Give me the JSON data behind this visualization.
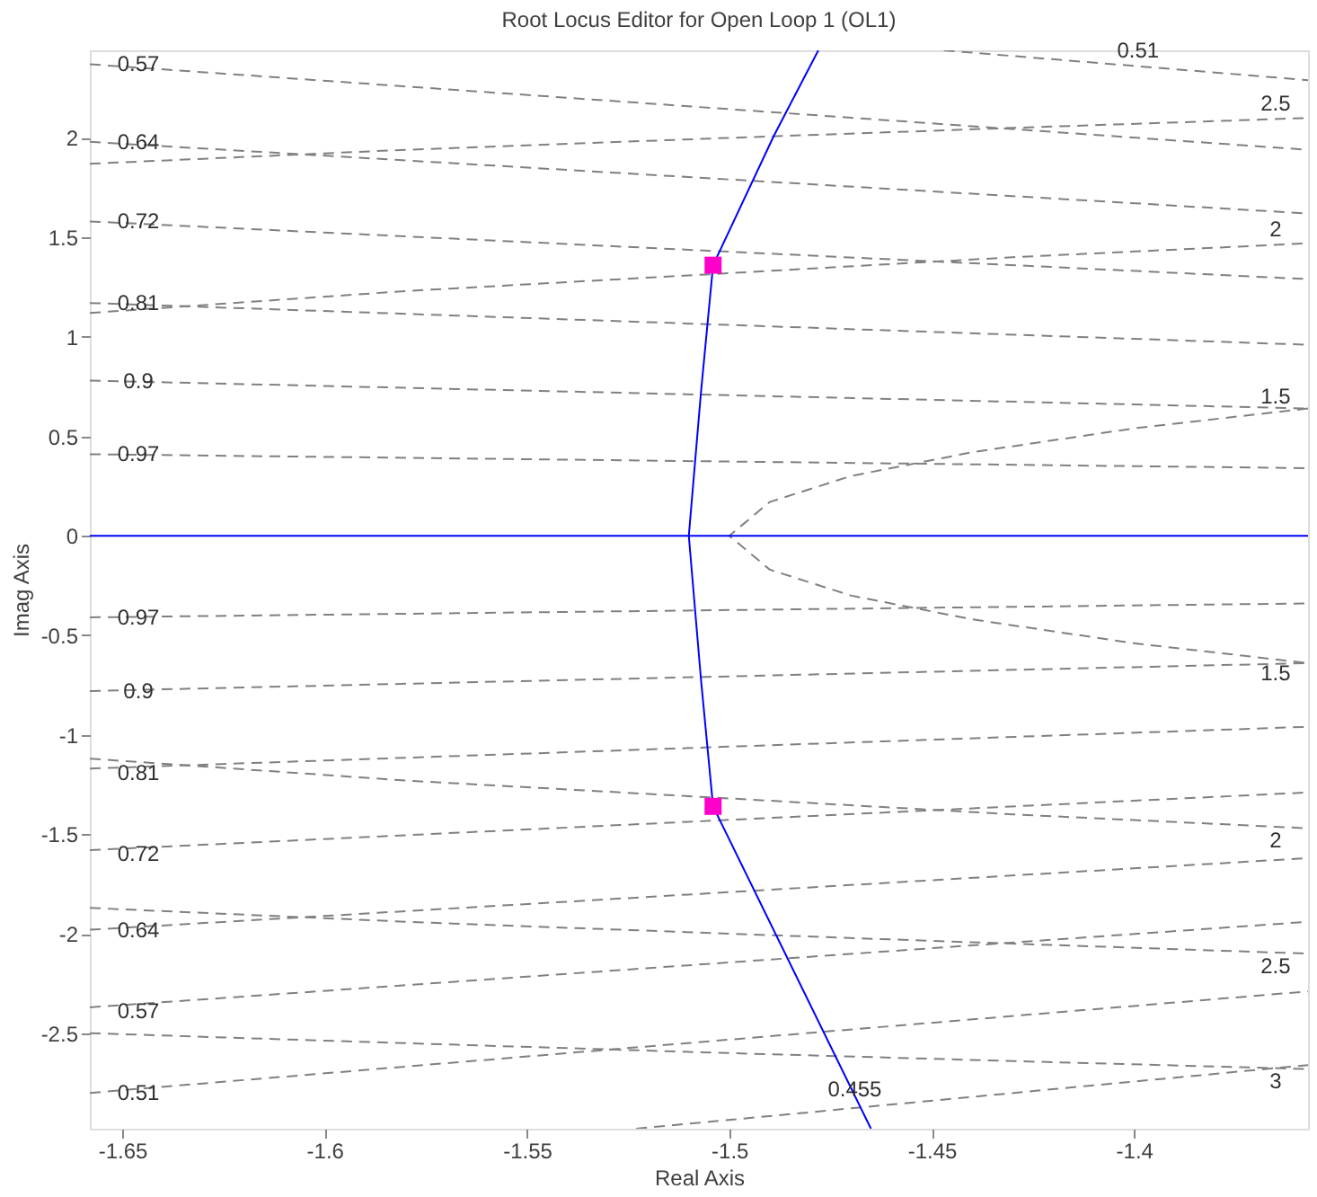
{
  "chart_data": {
    "type": "line",
    "title": "Root Locus Editor for Open Loop 1 (OL1)",
    "xlabel": "Real Axis",
    "ylabel": "Imag Axis",
    "xlim": [
      -1.658,
      -1.357
    ],
    "ylim": [
      -2.98,
      2.44
    ],
    "xticks": [
      -1.65,
      -1.6,
      -1.55,
      -1.5,
      -1.45,
      -1.4
    ],
    "yticks": [
      -2.5,
      -2,
      -1.5,
      -1,
      -0.5,
      0,
      0.5,
      1,
      1.5,
      2
    ],
    "grid": false,
    "series": [
      {
        "type": "line",
        "color": "#808080",
        "line_style": "dashed",
        "x": [
          -1.658,
          -1.357
        ],
        "values": [
          2.37,
          1.94
        ]
      },
      {
        "type": "line",
        "color": "#808080",
        "line_style": "dashed",
        "x": [
          -1.658,
          -1.357
        ],
        "values": [
          1.98,
          1.62
        ]
      },
      {
        "type": "line",
        "color": "#808080",
        "line_style": "dashed",
        "x": [
          -1.658,
          -1.357
        ],
        "values": [
          1.58,
          1.29
        ]
      },
      {
        "type": "line",
        "color": "#808080",
        "line_style": "dashed",
        "x": [
          -1.658,
          -1.357
        ],
        "values": [
          1.17,
          0.96
        ]
      },
      {
        "type": "line",
        "color": "#808080",
        "line_style": "dashed",
        "x": [
          -1.658,
          -1.357
        ],
        "values": [
          0.78,
          0.64
        ]
      },
      {
        "type": "line",
        "color": "#808080",
        "line_style": "dashed",
        "x": [
          -1.658,
          -1.357
        ],
        "values": [
          0.41,
          0.34
        ]
      },
      {
        "type": "line",
        "color": "#808080",
        "line_style": "dashed",
        "x": [
          -1.447,
          -1.357
        ],
        "values": [
          2.44,
          2.29
        ]
      },
      {
        "type": "line",
        "color": "#808080",
        "line_style": "dashed",
        "x": [
          -1.658,
          -1.357
        ],
        "values": [
          -2.37,
          -1.94
        ]
      },
      {
        "type": "line",
        "color": "#808080",
        "line_style": "dashed",
        "x": [
          -1.658,
          -1.357
        ],
        "values": [
          -1.98,
          -1.62
        ]
      },
      {
        "type": "line",
        "color": "#808080",
        "line_style": "dashed",
        "x": [
          -1.658,
          -1.357
        ],
        "values": [
          -1.58,
          -1.29
        ]
      },
      {
        "type": "line",
        "color": "#808080",
        "line_style": "dashed",
        "x": [
          -1.658,
          -1.357
        ],
        "values": [
          -1.17,
          -0.96
        ]
      },
      {
        "type": "line",
        "color": "#808080",
        "line_style": "dashed",
        "x": [
          -1.658,
          -1.357
        ],
        "values": [
          -0.78,
          -0.64
        ]
      },
      {
        "type": "line",
        "color": "#808080",
        "line_style": "dashed",
        "x": [
          -1.658,
          -1.357
        ],
        "values": [
          -0.41,
          -0.34
        ]
      },
      {
        "type": "line",
        "color": "#808080",
        "line_style": "dashed",
        "x": [
          -1.658,
          -1.357
        ],
        "values": [
          -2.8,
          -2.29
        ]
      },
      {
        "type": "line",
        "color": "#808080",
        "line_style": "dashed",
        "x": [
          -1.523,
          -1.357
        ],
        "values": [
          -2.98,
          -2.66
        ]
      },
      {
        "type": "line",
        "color": "#808080",
        "line_style": "dashed",
        "x": [
          -1.357,
          -1.4,
          -1.44,
          -1.47,
          -1.49,
          -1.5,
          -1.49,
          -1.47,
          -1.44,
          -1.4,
          -1.357
        ],
        "values": [
          0.64,
          0.54,
          0.42,
          0.3,
          0.17,
          0,
          -0.17,
          -0.3,
          -0.42,
          -0.54,
          -0.64
        ]
      },
      {
        "type": "line",
        "color": "#808080",
        "line_style": "dashed",
        "x": [
          -1.658,
          -1.58,
          -1.5,
          -1.43,
          -1.357
        ],
        "values": [
          1.12,
          1.23,
          1.32,
          1.4,
          1.47
        ]
      },
      {
        "type": "line",
        "color": "#808080",
        "line_style": "dashed",
        "x": [
          -1.658,
          -1.58,
          -1.5,
          -1.43,
          -1.357
        ],
        "values": [
          1.87,
          1.94,
          2.0,
          2.05,
          2.1
        ]
      },
      {
        "type": "line",
        "color": "#808080",
        "line_style": "dashed",
        "x": [
          -1.658,
          -1.58,
          -1.5,
          -1.43,
          -1.357
        ],
        "values": [
          -1.12,
          -1.23,
          -1.32,
          -1.4,
          -1.47
        ]
      },
      {
        "type": "line",
        "color": "#808080",
        "line_style": "dashed",
        "x": [
          -1.658,
          -1.58,
          -1.5,
          -1.43,
          -1.357
        ],
        "values": [
          -1.87,
          -1.94,
          -2.0,
          -2.05,
          -2.1
        ]
      },
      {
        "type": "line",
        "color": "#808080",
        "line_style": "dashed",
        "x": [
          -1.658,
          -1.58,
          -1.5,
          -1.43,
          -1.357
        ],
        "values": [
          -2.5,
          -2.55,
          -2.6,
          -2.64,
          -2.68
        ]
      },
      {
        "color": "#0000ff",
        "line_style": "solid",
        "x": [
          -1.658,
          -1.357
        ],
        "values": [
          0,
          0
        ]
      },
      {
        "color": "#0000ff",
        "line_style": "solid",
        "x": [
          -1.478,
          -1.489,
          -1.504,
          -1.507,
          -1.51,
          -1.507,
          -1.504,
          -1.465
        ],
        "values": [
          2.44,
          2.01,
          1.36,
          0.72,
          0,
          -0.72,
          -1.36,
          -2.98
        ]
      },
      {
        "type": "scatter",
        "color": "#ff00cc",
        "marker": "square",
        "x": [
          -1.504,
          -1.504
        ],
        "values": [
          1.36,
          -1.36
        ]
      }
    ],
    "annotations": [
      {
        "text": "0.57",
        "x": -1.646,
        "y": 2.37
      },
      {
        "text": "0.64",
        "x": -1.646,
        "y": 1.98
      },
      {
        "text": "0.72",
        "x": -1.646,
        "y": 1.58
      },
      {
        "text": "0.81",
        "x": -1.646,
        "y": 1.17
      },
      {
        "text": "0.9",
        "x": -1.646,
        "y": 0.78
      },
      {
        "text": "0.97",
        "x": -1.646,
        "y": 0.41
      },
      {
        "text": "0.97",
        "x": -1.646,
        "y": -0.41
      },
      {
        "text": "0.9",
        "x": -1.646,
        "y": -0.78
      },
      {
        "text": "0.81",
        "x": -1.646,
        "y": -1.19
      },
      {
        "text": "0.72",
        "x": -1.646,
        "y": -1.6
      },
      {
        "text": "0.64",
        "x": -1.646,
        "y": -1.98
      },
      {
        "text": "0.57",
        "x": -1.646,
        "y": -2.39
      },
      {
        "text": "0.51",
        "x": -1.646,
        "y": -2.8
      },
      {
        "text": "0.51",
        "x": -1.399,
        "y": 2.36
      },
      {
        "text": "2.5",
        "x": -1.365,
        "y": 2.09
      },
      {
        "text": "2",
        "x": -1.365,
        "y": 1.46
      },
      {
        "text": "1.5",
        "x": -1.365,
        "y": 0.62
      },
      {
        "text": "1.5",
        "x": -1.365,
        "y": -0.62
      },
      {
        "text": "2",
        "x": -1.365,
        "y": -1.46
      },
      {
        "text": "2.5",
        "x": -1.365,
        "y": -2.09
      },
      {
        "text": "3",
        "x": -1.365,
        "y": -2.67
      },
      {
        "text": "0.455",
        "x": -1.469,
        "y": -2.78
      }
    ]
  }
}
